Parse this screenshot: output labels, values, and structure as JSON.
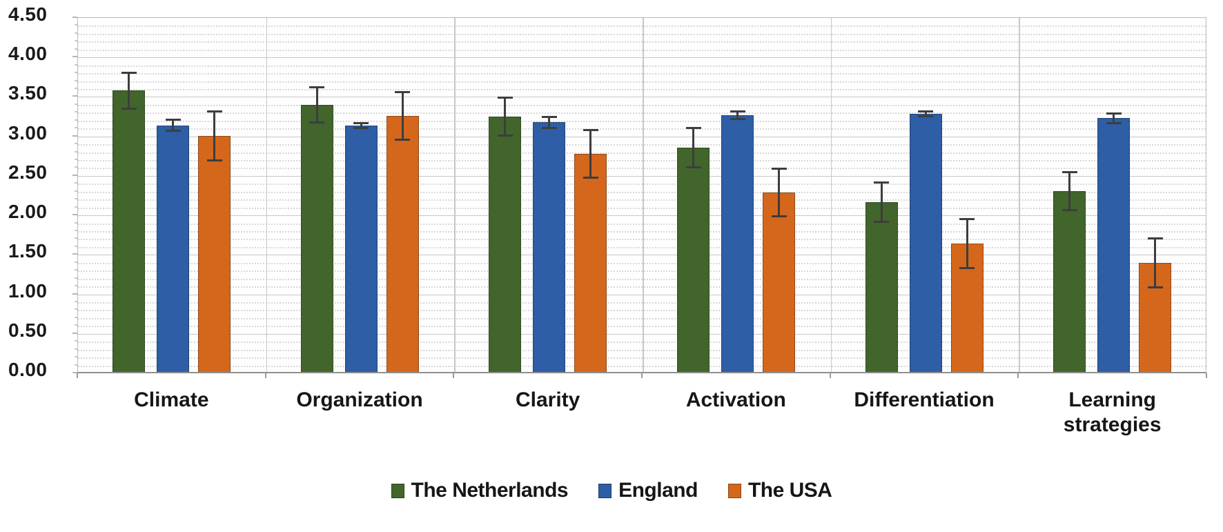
{
  "chart_data": {
    "type": "bar",
    "title": "",
    "xlabel": "",
    "ylabel": "",
    "categories": [
      "Climate",
      "Organization",
      "Clarity",
      "Activation",
      "Differentiation",
      "Learning\nstrategies"
    ],
    "series": [
      {
        "name": "The Netherlands",
        "color": "#41652b",
        "values": [
          3.57,
          3.39,
          3.24,
          2.85,
          2.16,
          2.3
        ],
        "errors": [
          0.23,
          0.22,
          0.24,
          0.25,
          0.25,
          0.24
        ]
      },
      {
        "name": "England",
        "color": "#2d5ea6",
        "values": [
          3.13,
          3.13,
          3.17,
          3.26,
          3.28,
          3.22
        ],
        "errors": [
          0.07,
          0.03,
          0.07,
          0.05,
          0.03,
          0.06
        ]
      },
      {
        "name": "The USA",
        "color": "#d4671c",
        "values": [
          3.0,
          3.25,
          2.77,
          2.28,
          1.63,
          1.39
        ],
        "errors": [
          0.31,
          0.3,
          0.3,
          0.3,
          0.31,
          0.31
        ]
      }
    ],
    "y_axis": {
      "min": 0,
      "max": 4.5,
      "major_step": 0.5,
      "minor_step": 0.1,
      "tick_labels": [
        "0.00",
        "0.50",
        "1.00",
        "1.50",
        "2.00",
        "2.50",
        "3.00",
        "3.50",
        "4.00",
        "4.50"
      ]
    },
    "grid": true,
    "legend_position": "bottom",
    "error_bar_color": "#3d3d3d"
  },
  "colors": {
    "netherlands_green": "#41652b",
    "england_blue": "#2d5ea6",
    "usa_orange": "#d4671c",
    "error_bar": "#3d3d3d",
    "gridline_minor": "#d8d8d8",
    "gridline_major": "#c7c7c7",
    "axis_line": "#8f8f8f",
    "text": "#161616"
  }
}
